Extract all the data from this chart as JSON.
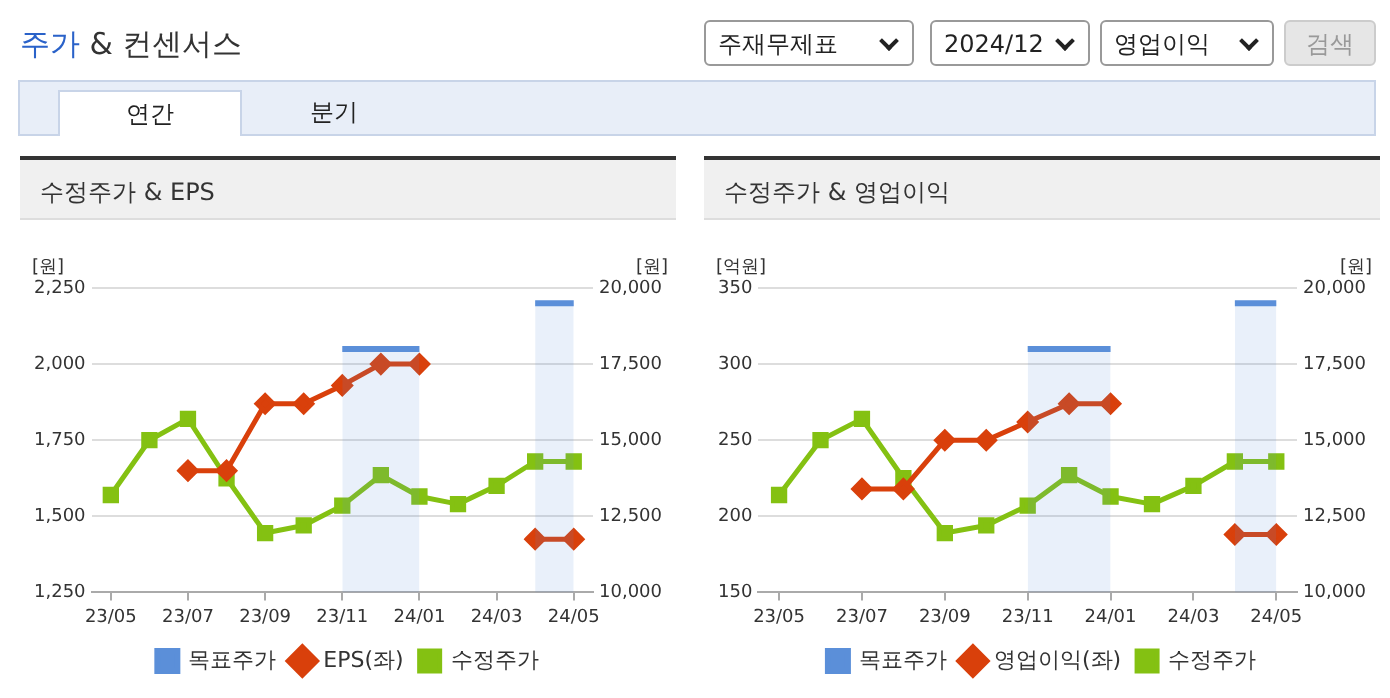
{
  "chart_data": [
    {
      "type": "other",
      "title": "주가 & 컨센서스",
      "annotations": [
        "주재무제표",
        "2024/12",
        "영업이익",
        "검색",
        "연간",
        "분기"
      ]
    },
    {
      "type": "line",
      "title": "수정주가 & EPS",
      "ylabel": "[원]",
      "y2label": "[원]",
      "legend": "bottom",
      "grid": "y",
      "categories": [
        "23/05",
        null,
        "23/07",
        null,
        "23/09",
        null,
        "23/11",
        null,
        "24/01",
        null,
        "24/03",
        null,
        "24/05"
      ],
      "ylim": [
        1250,
        2250
      ],
      "yticks": [
        {
          "value": 1250,
          "label": "1,250"
        },
        {
          "value": 1500,
          "label": "1,500"
        },
        {
          "value": 1750,
          "label": "1,750"
        },
        {
          "value": 2000,
          "label": "2,000"
        },
        {
          "value": 2250,
          "label": "2,250"
        }
      ],
      "y2lim": [
        10000,
        20000
      ],
      "y2ticks": [
        {
          "value": 10000,
          "label": "10,000"
        },
        {
          "value": 12500,
          "label": "12,500"
        },
        {
          "value": 15000,
          "label": "15,000"
        },
        {
          "value": 17500,
          "label": "17,500"
        },
        {
          "value": 20000,
          "label": "20,000"
        }
      ],
      "series": [
        {
          "name": "목표주가",
          "type": "area",
          "axis": "y2",
          "color": "#5b8fd9",
          "values": [
            null,
            null,
            null,
            null,
            null,
            null,
            18000,
            18000,
            18000,
            null,
            null,
            19500,
            19500
          ]
        },
        {
          "name": "EPS(좌)",
          "type": "line",
          "color": "#d9400b",
          "marker": "diamond",
          "values": [
            null,
            null,
            1650,
            1650,
            1870,
            1870,
            1930,
            2000,
            2000,
            null,
            null,
            1425,
            1425
          ]
        },
        {
          "name": "수정주가",
          "type": "line",
          "axis": "y2",
          "color": "#84c112",
          "marker": "square",
          "values": [
            13200,
            15000,
            15700,
            13750,
            11950,
            12200,
            12850,
            13850,
            13150,
            12900,
            13500,
            14300,
            14300
          ]
        }
      ]
    },
    {
      "type": "line",
      "title": "수정주가 & 영업이익",
      "ylabel": "[억원]",
      "y2label": "[원]",
      "legend": "bottom",
      "grid": "y",
      "categories": [
        "23/05",
        null,
        "23/07",
        null,
        "23/09",
        null,
        "23/11",
        null,
        "24/01",
        null,
        "24/03",
        null,
        "24/05"
      ],
      "ylim": [
        150,
        350
      ],
      "yticks": [
        150,
        200,
        250,
        300,
        350
      ],
      "y2lim": [
        10000,
        20000
      ],
      "y2ticks": [
        {
          "value": 10000,
          "label": "10,000"
        },
        {
          "value": 12500,
          "label": "12,500"
        },
        {
          "value": 15000,
          "label": "15,000"
        },
        {
          "value": 17500,
          "label": "17,500"
        },
        {
          "value": 20000,
          "label": "20,000"
        }
      ],
      "series": [
        {
          "name": "목표주가",
          "type": "area",
          "axis": "y2",
          "color": "#5b8fd9",
          "values": [
            null,
            null,
            null,
            null,
            null,
            null,
            18000,
            18000,
            18000,
            null,
            null,
            19500,
            19500
          ]
        },
        {
          "name": "영업이익(좌)",
          "type": "line",
          "color": "#d9400b",
          "marker": "diamond",
          "values": [
            null,
            null,
            218,
            218,
            250,
            250,
            262,
            274,
            274,
            null,
            null,
            188,
            188
          ]
        },
        {
          "name": "수정주가",
          "type": "line",
          "axis": "y2",
          "color": "#84c112",
          "marker": "square",
          "values": [
            13200,
            15000,
            15700,
            13750,
            11950,
            12200,
            12850,
            13850,
            13150,
            12900,
            13500,
            14300,
            14300
          ]
        }
      ]
    }
  ]
}
